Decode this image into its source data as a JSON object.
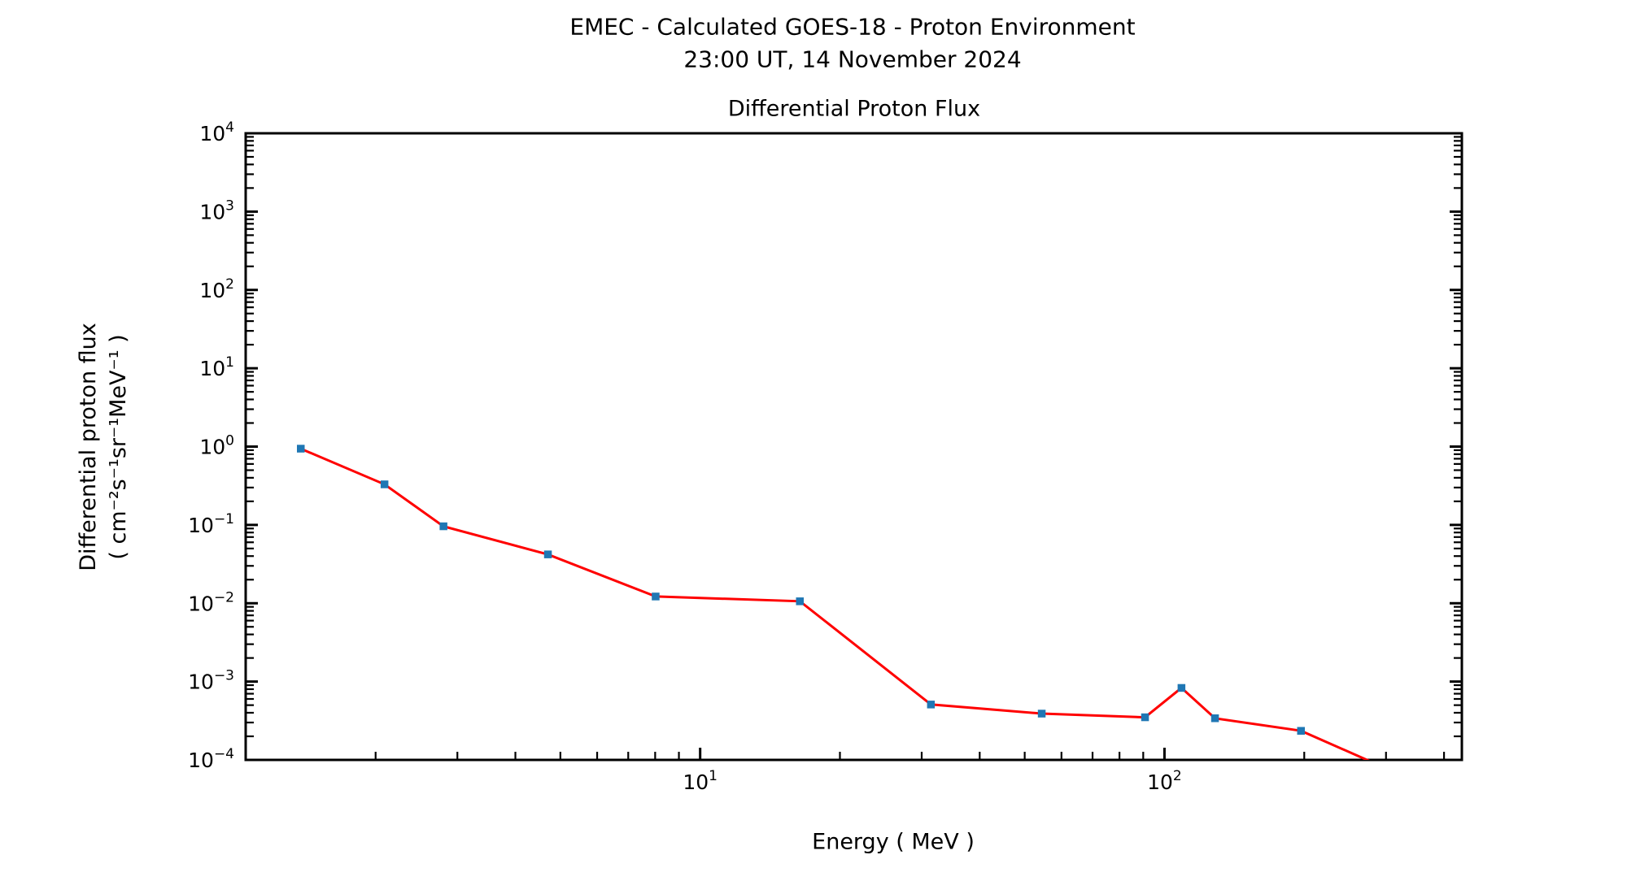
{
  "header": {
    "title_line1": "EMEC - Calculated GOES-18 - Proton Environment",
    "title_line2": "23:00 UT, 14 November 2024"
  },
  "chart_data": {
    "type": "line",
    "title": "Differential Proton Flux",
    "xlabel": "Energy ( MeV )",
    "ylabel_line1": "Differential proton flux",
    "ylabel_line2": "( cm⁻²s⁻¹sr⁻¹MeV⁻¹ )",
    "x_scale": "log",
    "y_scale": "log",
    "xlim": [
      1.05,
      437
    ],
    "ylim": [
      0.0001,
      10000
    ],
    "x_major_tick_exponents": [
      1,
      2
    ],
    "y_major_tick_exponents": [
      4,
      3,
      2,
      1,
      0,
      -1,
      -2,
      -3,
      -4
    ],
    "grid": false,
    "legend": null,
    "line_color": "#ff0000",
    "marker_color": "#1f77b4",
    "marker_shape": "square",
    "series": [
      {
        "name": "Differential Proton Flux",
        "x": [
          1.38,
          2.09,
          2.8,
          4.7,
          8.02,
          16.4,
          31.4,
          54.4,
          90.8,
          108.8,
          128.5,
          196.8,
          334
        ],
        "y": [
          0.94,
          0.33,
          0.096,
          0.042,
          0.0122,
          0.0106,
          0.00051,
          0.00039,
          0.00035,
          0.00083,
          0.00034,
          0.000235,
          5.9e-05
        ]
      }
    ]
  }
}
